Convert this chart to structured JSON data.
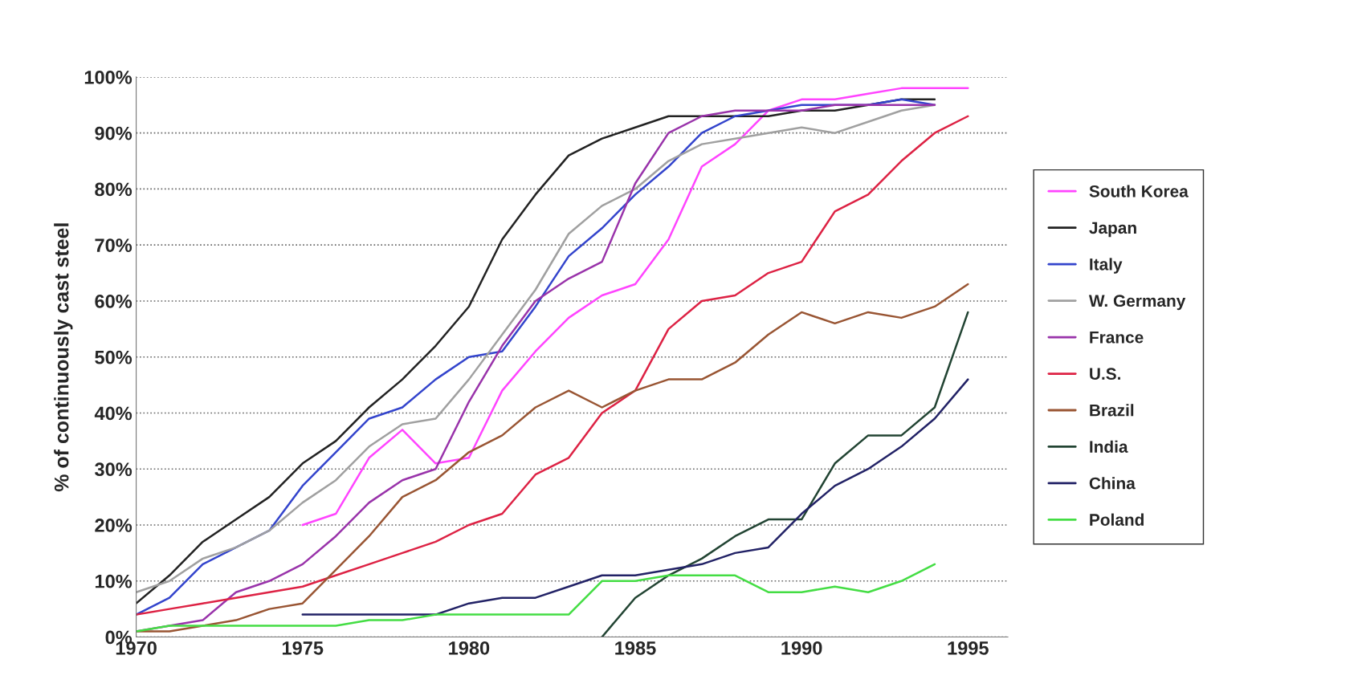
{
  "chart_data": {
    "type": "line",
    "ylabel": "% of continuously cast steel",
    "xlim": [
      1970,
      1996.2
    ],
    "xticks": [
      1970,
      1975,
      1980,
      1985,
      1990,
      1995
    ],
    "ylim": [
      0,
      100
    ],
    "yticks": [
      {
        "value": 0,
        "label": "0%"
      },
      {
        "value": 10,
        "label": "10%"
      },
      {
        "value": 20,
        "label": "20%"
      },
      {
        "value": 30,
        "label": "30%"
      },
      {
        "value": 40,
        "label": "40%"
      },
      {
        "value": 50,
        "label": "50%"
      },
      {
        "value": 60,
        "label": "60%"
      },
      {
        "value": 70,
        "label": "70%"
      },
      {
        "value": 80,
        "label": "80%"
      },
      {
        "value": 90,
        "label": "90%"
      },
      {
        "value": 100,
        "label": "100%"
      }
    ],
    "grid": "y",
    "legend": "right",
    "marker": "none",
    "line_style": "solid",
    "series": [
      {
        "name": "South Korea",
        "color": "#ff44ff",
        "x": [
          1975,
          1976,
          1977,
          1978,
          1979,
          1980,
          1981,
          1982,
          1983,
          1984,
          1985,
          1986,
          1987,
          1988,
          1989,
          1990,
          1991,
          1992,
          1993,
          1994,
          1995
        ],
        "values": [
          20,
          22,
          32,
          37,
          31,
          32,
          44,
          51,
          57,
          61,
          63,
          71,
          84,
          88,
          94,
          96,
          96,
          97,
          98,
          98,
          98
        ]
      },
      {
        "name": "Japan",
        "color": "#222222",
        "x": [
          1970,
          1971,
          1972,
          1973,
          1974,
          1975,
          1976,
          1977,
          1978,
          1979,
          1980,
          1981,
          1982,
          1983,
          1984,
          1985,
          1986,
          1987,
          1988,
          1989,
          1990,
          1991,
          1992,
          1993,
          1994
        ],
        "values": [
          6,
          11,
          17,
          21,
          25,
          31,
          35,
          41,
          46,
          52,
          59,
          71,
          79,
          86,
          89,
          91,
          93,
          93,
          93,
          93,
          94,
          94,
          95,
          96,
          96
        ]
      },
      {
        "name": "Italy",
        "color": "#3344cc",
        "x": [
          1970,
          1971,
          1972,
          1973,
          1974,
          1975,
          1976,
          1977,
          1978,
          1979,
          1980,
          1981,
          1982,
          1983,
          1984,
          1985,
          1986,
          1987,
          1988,
          1989,
          1990,
          1991,
          1992,
          1993,
          1994
        ],
        "values": [
          4,
          7,
          13,
          16,
          19,
          27,
          33,
          39,
          41,
          46,
          50,
          51,
          59,
          68,
          73,
          79,
          84,
          90,
          93,
          94,
          95,
          95,
          95,
          96,
          95
        ]
      },
      {
        "name": "W. Germany",
        "color": "#a0a0a0",
        "x": [
          1970,
          1971,
          1972,
          1973,
          1974,
          1975,
          1976,
          1977,
          1978,
          1979,
          1980,
          1981,
          1982,
          1983,
          1984,
          1985,
          1986,
          1987,
          1988,
          1989,
          1990,
          1991,
          1992,
          1993,
          1994
        ],
        "values": [
          8,
          10,
          14,
          16,
          19,
          24,
          28,
          34,
          38,
          39,
          46,
          54,
          62,
          72,
          77,
          80,
          85,
          88,
          89,
          90,
          91,
          90,
          92,
          94,
          95
        ]
      },
      {
        "name": "France",
        "color": "#9933aa",
        "x": [
          1970,
          1971,
          1972,
          1973,
          1974,
          1975,
          1976,
          1977,
          1978,
          1979,
          1980,
          1981,
          1982,
          1983,
          1984,
          1985,
          1986,
          1987,
          1988,
          1989,
          1990,
          1991,
          1992,
          1993,
          1994
        ],
        "values": [
          1,
          2,
          3,
          8,
          10,
          13,
          18,
          24,
          28,
          30,
          42,
          52,
          60,
          64,
          67,
          81,
          90,
          93,
          94,
          94,
          94,
          95,
          95,
          95,
          95
        ]
      },
      {
        "name": "U.S.",
        "color": "#dd2244",
        "x": [
          1970,
          1971,
          1972,
          1973,
          1974,
          1975,
          1976,
          1977,
          1978,
          1979,
          1980,
          1981,
          1982,
          1983,
          1984,
          1985,
          1986,
          1987,
          1988,
          1989,
          1990,
          1991,
          1992,
          1993,
          1994,
          1995
        ],
        "values": [
          4,
          5,
          6,
          7,
          8,
          9,
          11,
          13,
          15,
          17,
          20,
          22,
          29,
          32,
          40,
          44,
          55,
          60,
          61,
          65,
          67,
          76,
          79,
          85,
          90,
          93
        ]
      },
      {
        "name": "Brazil",
        "color": "#995533",
        "x": [
          1970,
          1971,
          1972,
          1973,
          1974,
          1975,
          1976,
          1977,
          1978,
          1979,
          1980,
          1981,
          1982,
          1983,
          1984,
          1985,
          1986,
          1987,
          1988,
          1989,
          1990,
          1991,
          1992,
          1993,
          1994,
          1995
        ],
        "values": [
          1,
          1,
          2,
          3,
          5,
          6,
          12,
          18,
          25,
          28,
          33,
          36,
          41,
          44,
          41,
          44,
          46,
          46,
          49,
          54,
          58,
          56,
          58,
          57,
          59,
          63
        ]
      },
      {
        "name": "India",
        "color": "#224433",
        "x": [
          1984,
          1985,
          1986,
          1987,
          1988,
          1989,
          1990,
          1991,
          1992,
          1993,
          1994,
          1995
        ],
        "values": [
          0,
          7,
          11,
          14,
          18,
          21,
          21,
          31,
          36,
          36,
          41,
          58
        ]
      },
      {
        "name": "China",
        "color": "#222266",
        "x": [
          1975,
          1976,
          1977,
          1978,
          1979,
          1980,
          1981,
          1982,
          1983,
          1984,
          1985,
          1986,
          1987,
          1988,
          1989,
          1990,
          1991,
          1992,
          1993,
          1994,
          1995
        ],
        "values": [
          4,
          4,
          4,
          4,
          4,
          6,
          7,
          7,
          9,
          11,
          11,
          12,
          13,
          15,
          16,
          22,
          27,
          30,
          34,
          39,
          46
        ]
      },
      {
        "name": "Poland",
        "color": "#44dd44",
        "x": [
          1970,
          1971,
          1972,
          1973,
          1974,
          1975,
          1976,
          1977,
          1978,
          1979,
          1980,
          1981,
          1982,
          1983,
          1984,
          1985,
          1986,
          1987,
          1988,
          1989,
          1990,
          1991,
          1992,
          1993,
          1994
        ],
        "values": [
          1,
          2,
          2,
          2,
          2,
          2,
          2,
          3,
          3,
          4,
          4,
          4,
          4,
          4,
          10,
          10,
          11,
          11,
          11,
          8,
          8,
          9,
          8,
          10,
          13
        ]
      }
    ]
  }
}
